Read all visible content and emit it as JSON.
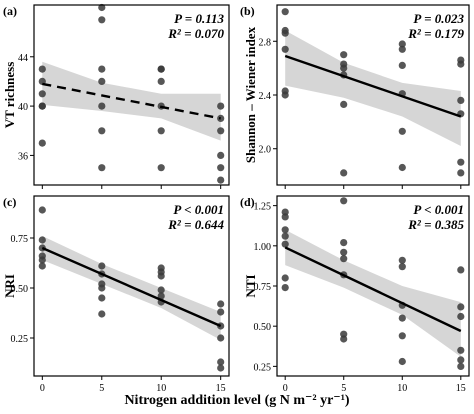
{
  "xlabel": "Nitrogen addition level (g N m⁻² yr⁻¹)",
  "chart_data": [
    {
      "type": "scatter",
      "panel_label": "(a)",
      "ylabel": "VT richness",
      "p_text": "P = 0.113",
      "r2_text": "R² = 0.070",
      "x_ticks": [
        0,
        5,
        10,
        15
      ],
      "y_ticks": [
        36,
        40,
        44
      ],
      "xlim": [
        -0.7,
        15.7
      ],
      "ylim": [
        33.6,
        48.2
      ],
      "show_x_tick_labels": false,
      "trend": {
        "style": "dashed",
        "x": [
          0,
          15
        ],
        "y": [
          41.8,
          39.0
        ]
      },
      "ci": {
        "x": [
          0,
          5,
          10,
          15
        ],
        "upper": [
          43.6,
          41.9,
          41.0,
          41.0
        ],
        "lower": [
          40.1,
          39.6,
          39.0,
          37.2
        ]
      },
      "points": {
        "x": [
          0,
          0,
          0,
          0,
          0,
          0,
          5,
          5,
          5,
          5,
          5,
          5,
          5,
          10,
          10,
          10,
          10,
          10,
          10,
          15,
          15,
          15,
          15,
          15,
          15
        ],
        "y": [
          43,
          42,
          41,
          40,
          40,
          37,
          48,
          47,
          43,
          42,
          38,
          35,
          40,
          43,
          42,
          43,
          40,
          38,
          35,
          40,
          39,
          38,
          36,
          35,
          34
        ]
      }
    },
    {
      "type": "scatter",
      "panel_label": "(b)",
      "ylabel": "Shannon – Wiener index",
      "p_text": "P = 0.023",
      "r2_text": "R² = 0.179",
      "x_ticks": [
        0,
        5,
        10,
        15
      ],
      "y_ticks": [
        2.0,
        2.4,
        2.8
      ],
      "xlim": [
        -0.7,
        15.7
      ],
      "ylim": [
        1.73,
        3.07
      ],
      "show_x_tick_labels": false,
      "trend": {
        "style": "solid",
        "x": [
          0,
          15
        ],
        "y": [
          2.69,
          2.24
        ]
      },
      "ci": {
        "x": [
          0,
          5,
          10,
          15
        ],
        "upper": [
          2.88,
          2.64,
          2.49,
          2.43
        ],
        "lower": [
          2.47,
          2.38,
          2.24,
          2.02
        ]
      },
      "points": {
        "x": [
          0,
          0,
          0,
          0,
          0,
          0,
          5,
          5,
          5,
          5,
          5,
          5,
          10,
          10,
          10,
          10,
          10,
          10,
          15,
          15,
          15,
          15,
          15,
          15
        ],
        "y": [
          3.02,
          2.86,
          2.88,
          2.74,
          2.43,
          2.4,
          2.7,
          2.63,
          2.6,
          2.55,
          2.33,
          1.82,
          2.78,
          2.74,
          2.62,
          2.41,
          2.13,
          1.86,
          2.66,
          2.63,
          2.36,
          2.26,
          1.9,
          1.82
        ]
      }
    },
    {
      "type": "scatter",
      "panel_label": "(c)",
      "ylabel": "NRI",
      "p_text": "P < 0.001",
      "r2_text": "R² = 0.644",
      "x_ticks": [
        0,
        5,
        10,
        15
      ],
      "y_ticks": [
        0.25,
        0.5,
        0.75
      ],
      "xlim": [
        -0.7,
        15.7
      ],
      "ylim": [
        0.06,
        0.96
      ],
      "show_x_tick_labels": true,
      "trend": {
        "style": "solid",
        "x": [
          0,
          15
        ],
        "y": [
          0.7,
          0.31
        ]
      },
      "ci": {
        "x": [
          0,
          5,
          10,
          15
        ],
        "upper": [
          0.76,
          0.62,
          0.5,
          0.38
        ],
        "lower": [
          0.64,
          0.52,
          0.4,
          0.24
        ]
      },
      "points": {
        "x": [
          0,
          0,
          0,
          0,
          0,
          0,
          5,
          5,
          5,
          5,
          5,
          5,
          10,
          10,
          10,
          10,
          10,
          10,
          15,
          15,
          15,
          15,
          15,
          15
        ],
        "y": [
          0.89,
          0.74,
          0.7,
          0.66,
          0.64,
          0.61,
          0.61,
          0.57,
          0.52,
          0.5,
          0.45,
          0.37,
          0.6,
          0.58,
          0.56,
          0.49,
          0.43,
          0.46,
          0.42,
          0.38,
          0.31,
          0.25,
          0.13,
          0.1
        ]
      }
    },
    {
      "type": "scatter",
      "panel_label": "(d)",
      "ylabel": "NTI",
      "p_text": "P < 0.001",
      "r2_text": "R² = 0.385",
      "x_ticks": [
        0,
        5,
        10,
        15
      ],
      "y_ticks": [
        0.25,
        0.5,
        0.75,
        1.0,
        1.25
      ],
      "xlim": [
        -0.7,
        15.7
      ],
      "ylim": [
        0.19,
        1.31
      ],
      "show_x_tick_labels": true,
      "trend": {
        "style": "solid",
        "x": [
          0,
          15
        ],
        "y": [
          0.99,
          0.47
        ]
      },
      "ci": {
        "x": [
          0,
          5,
          10,
          15
        ],
        "upper": [
          1.1,
          0.91,
          0.75,
          0.65
        ],
        "lower": [
          0.88,
          0.74,
          0.57,
          0.31
        ]
      },
      "points": {
        "x": [
          0,
          0,
          0,
          0,
          0,
          0,
          0,
          5,
          5,
          5,
          5,
          5,
          5,
          5,
          10,
          10,
          10,
          10,
          10,
          10,
          15,
          15,
          15,
          15,
          15,
          15
        ],
        "y": [
          1.21,
          1.18,
          1.1,
          1.06,
          1.01,
          0.8,
          0.74,
          1.28,
          1.02,
          0.96,
          0.92,
          0.82,
          0.45,
          0.42,
          0.91,
          0.87,
          0.63,
          0.55,
          0.44,
          0.28,
          0.85,
          0.62,
          0.56,
          0.35,
          0.29,
          0.25
        ]
      }
    }
  ]
}
